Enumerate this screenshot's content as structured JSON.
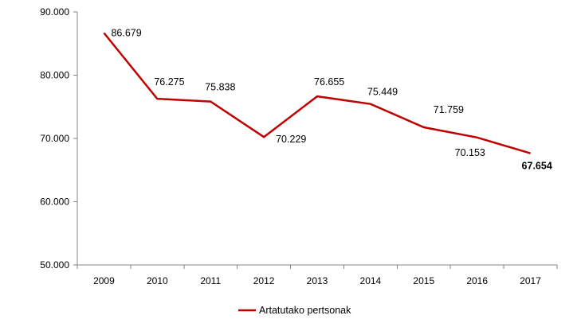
{
  "chart_data": {
    "type": "line",
    "categories": [
      "2009",
      "2010",
      "2011",
      "2012",
      "2013",
      "2014",
      "2015",
      "2016",
      "2017"
    ],
    "series": [
      {
        "name": "Artatutako pertsonak",
        "values": [
          86679,
          76275,
          75838,
          70229,
          76655,
          75449,
          71759,
          70153,
          67654
        ],
        "data_labels": [
          "86.679",
          "76.275",
          "75.838",
          "70.229",
          "76.655",
          "75.449",
          "71.759",
          "70.153",
          "67.654"
        ],
        "color": "#C00000"
      }
    ],
    "y_ticks": [
      "50.000",
      "60.000",
      "70.000",
      "80.000",
      "90.000"
    ],
    "ylim": [
      50000,
      90000
    ],
    "title": "",
    "xlabel": "",
    "ylabel": "",
    "grid": false,
    "legend_position": "bottom"
  }
}
